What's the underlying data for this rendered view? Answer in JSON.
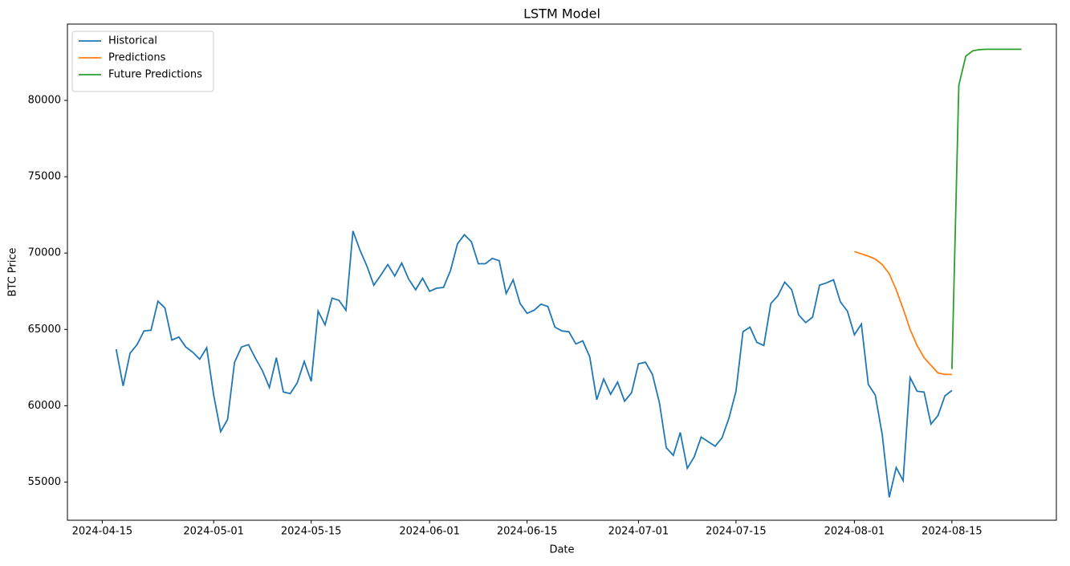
{
  "chart_data": {
    "type": "line",
    "title": "LSTM Model",
    "x_label": "Date",
    "y_label": "BTC Price",
    "xlim": [
      "2024-04-10",
      "2024-08-30"
    ],
    "xticks": [
      "2024-04-15",
      "2024-05-01",
      "2024-05-15",
      "2024-06-01",
      "2024-06-15",
      "2024-07-01",
      "2024-07-15",
      "2024-08-01",
      "2024-08-15"
    ],
    "ylim": [
      52500,
      85000
    ],
    "yticks": [
      55000,
      60000,
      65000,
      70000,
      75000,
      80000
    ],
    "legend": "upper left",
    "series": [
      {
        "name": "Historical",
        "color": "#1f77b4",
        "x": [
          "2024-04-17",
          "2024-04-18",
          "2024-04-19",
          "2024-04-20",
          "2024-04-21",
          "2024-04-22",
          "2024-04-23",
          "2024-04-24",
          "2024-04-25",
          "2024-04-26",
          "2024-04-27",
          "2024-04-28",
          "2024-04-29",
          "2024-04-30",
          "2024-05-01",
          "2024-05-02",
          "2024-05-03",
          "2024-05-04",
          "2024-05-05",
          "2024-05-06",
          "2024-05-07",
          "2024-05-08",
          "2024-05-09",
          "2024-05-10",
          "2024-05-11",
          "2024-05-12",
          "2024-05-13",
          "2024-05-14",
          "2024-05-15",
          "2024-05-16",
          "2024-05-17",
          "2024-05-18",
          "2024-05-19",
          "2024-05-20",
          "2024-05-21",
          "2024-05-22",
          "2024-05-23",
          "2024-05-24",
          "2024-05-25",
          "2024-05-26",
          "2024-05-27",
          "2024-05-28",
          "2024-05-29",
          "2024-05-30",
          "2024-05-31",
          "2024-06-01",
          "2024-06-02",
          "2024-06-03",
          "2024-06-04",
          "2024-06-05",
          "2024-06-06",
          "2024-06-07",
          "2024-06-08",
          "2024-06-09",
          "2024-06-10",
          "2024-06-11",
          "2024-06-12",
          "2024-06-13",
          "2024-06-14",
          "2024-06-15",
          "2024-06-16",
          "2024-06-17",
          "2024-06-18",
          "2024-06-19",
          "2024-06-20",
          "2024-06-21",
          "2024-06-22",
          "2024-06-23",
          "2024-06-24",
          "2024-06-25",
          "2024-06-26",
          "2024-06-27",
          "2024-06-28",
          "2024-06-29",
          "2024-06-30",
          "2024-07-01",
          "2024-07-02",
          "2024-07-03",
          "2024-07-04",
          "2024-07-05",
          "2024-07-06",
          "2024-07-07",
          "2024-07-08",
          "2024-07-09",
          "2024-07-10",
          "2024-07-11",
          "2024-07-12",
          "2024-07-13",
          "2024-07-14",
          "2024-07-15",
          "2024-07-16",
          "2024-07-17",
          "2024-07-18",
          "2024-07-19",
          "2024-07-20",
          "2024-07-21",
          "2024-07-22",
          "2024-07-23",
          "2024-07-24",
          "2024-07-25",
          "2024-07-26",
          "2024-07-27",
          "2024-07-28",
          "2024-07-29",
          "2024-07-30",
          "2024-07-31",
          "2024-08-01",
          "2024-08-02",
          "2024-08-03",
          "2024-08-04",
          "2024-08-05",
          "2024-08-06",
          "2024-08-07",
          "2024-08-08",
          "2024-08-09",
          "2024-08-10",
          "2024-08-11",
          "2024-08-12",
          "2024-08-13",
          "2024-08-14",
          "2024-08-15"
        ],
        "values": [
          63700,
          61300,
          63450,
          64000,
          64900,
          64950,
          66850,
          66400,
          64300,
          64500,
          63850,
          63500,
          63050,
          63800,
          60700,
          58300,
          59100,
          62850,
          63850,
          64000,
          63100,
          62300,
          61200,
          63150,
          60900,
          60800,
          61500,
          62900,
          61600,
          66200,
          65300,
          67050,
          66900,
          66250,
          71450,
          70200,
          69150,
          67900,
          68550,
          69250,
          68500,
          69350,
          68300,
          67600,
          68350,
          67500,
          67700,
          67750,
          68850,
          70600,
          71200,
          70750,
          69300,
          69300,
          69650,
          69500,
          67350,
          68250,
          66700,
          66050,
          66250,
          66650,
          66500,
          65150,
          64900,
          64850,
          64050,
          64250,
          63200,
          60400,
          61750,
          60750,
          61550,
          60300,
          60850,
          62750,
          62850,
          62050,
          60200,
          57250,
          56750,
          58250,
          55900,
          56650,
          57950,
          57650,
          57350,
          57900,
          59200,
          60950,
          64850,
          65150,
          64150,
          63950,
          66700,
          67200,
          68100,
          67600,
          65950,
          65450,
          65800,
          67900,
          68050,
          68250,
          66800,
          66200,
          64650,
          65350,
          61400,
          60700,
          58100,
          54000,
          55950,
          55100,
          61850,
          60950,
          60900,
          58800,
          59350,
          60650,
          61000
        ]
      },
      {
        "name": "Predictions",
        "color": "#ff7f0e",
        "x": [
          "2024-08-01",
          "2024-08-02",
          "2024-08-03",
          "2024-08-04",
          "2024-08-05",
          "2024-08-06",
          "2024-08-07",
          "2024-08-08",
          "2024-08-09",
          "2024-08-10",
          "2024-08-11",
          "2024-08-12",
          "2024-08-13",
          "2024-08-14",
          "2024-08-15"
        ],
        "values": [
          70100,
          69950,
          69800,
          69600,
          69250,
          68650,
          67600,
          66350,
          65000,
          63950,
          63150,
          62650,
          62150,
          62050,
          62050
        ]
      },
      {
        "name": "Future Predictions",
        "color": "#2ca02c",
        "x": [
          "2024-08-15",
          "2024-08-16",
          "2024-08-17",
          "2024-08-18",
          "2024-08-19",
          "2024-08-20",
          "2024-08-21",
          "2024-08-22",
          "2024-08-23",
          "2024-08-24",
          "2024-08-25"
        ],
        "values": [
          62400,
          81000,
          82900,
          83250,
          83330,
          83350,
          83350,
          83350,
          83350,
          83350,
          83350
        ]
      }
    ]
  }
}
